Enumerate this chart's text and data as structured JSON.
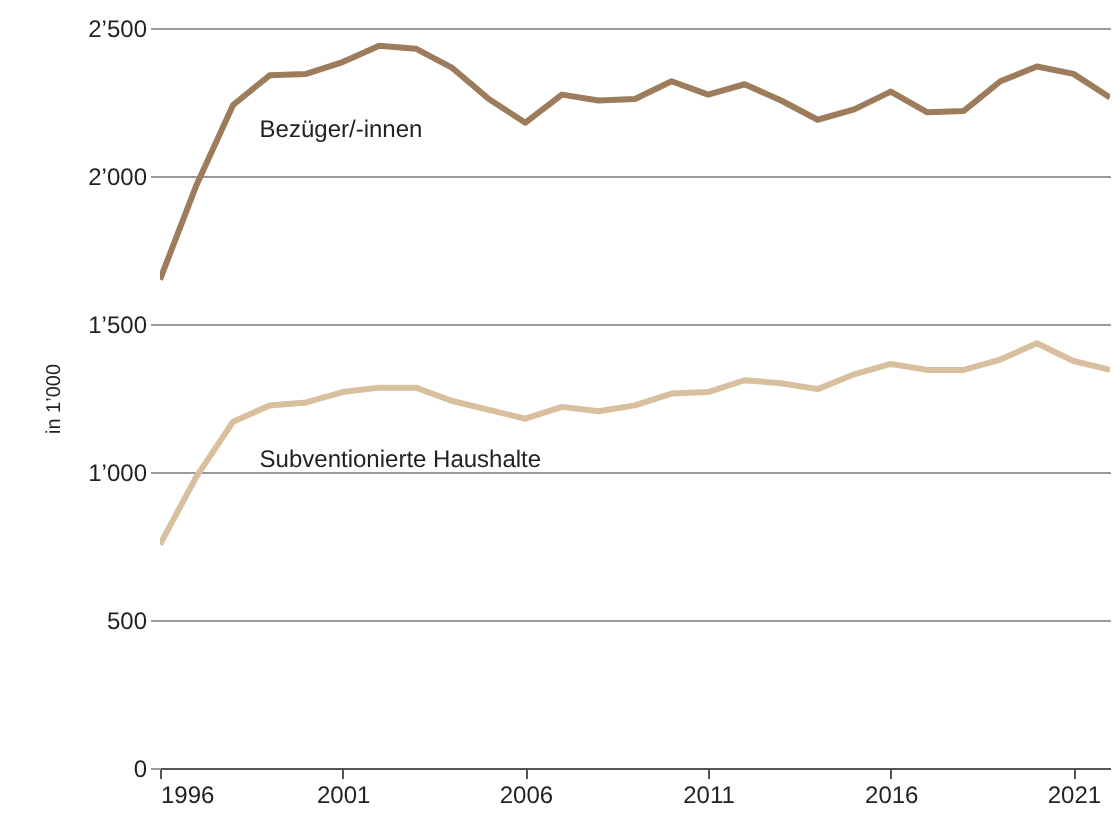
{
  "chart_data": {
    "type": "line",
    "ylabel": "in 1’000",
    "x": [
      1996,
      1997,
      1998,
      1999,
      2000,
      2001,
      2002,
      2003,
      2004,
      2005,
      2006,
      2007,
      2008,
      2009,
      2010,
      2011,
      2012,
      2013,
      2014,
      2015,
      2016,
      2017,
      2018,
      2019,
      2020,
      2021,
      2022
    ],
    "series": [
      {
        "name": "Bezüger/-innen",
        "color": "#9c7c5a",
        "values": [
          1650,
          1970,
          2240,
          2340,
          2345,
          2385,
          2440,
          2430,
          2365,
          2260,
          2180,
          2275,
          2255,
          2260,
          2320,
          2275,
          2310,
          2255,
          2190,
          2225,
          2285,
          2215,
          2220,
          2320,
          2370,
          2345,
          2265
        ]
      },
      {
        "name": "Subventionierte Haushalte",
        "color": "#d8bf9e",
        "values": [
          755,
          985,
          1170,
          1225,
          1235,
          1270,
          1285,
          1285,
          1240,
          1210,
          1180,
          1220,
          1205,
          1225,
          1265,
          1270,
          1310,
          1300,
          1280,
          1330,
          1365,
          1345,
          1345,
          1380,
          1435,
          1375,
          1345
        ]
      }
    ],
    "xlim": [
      1996,
      2022
    ],
    "xticks": [
      1996,
      2001,
      2006,
      2011,
      2016,
      2021
    ],
    "ylim": [
      0,
      2500
    ],
    "yticks": [
      {
        "value": 0,
        "label": "0"
      },
      {
        "value": 500,
        "label": "500"
      },
      {
        "value": 1000,
        "label": "1’000"
      },
      {
        "value": 1500,
        "label": "1’500"
      },
      {
        "value": 2000,
        "label": "2’000"
      },
      {
        "value": 2500,
        "label": "2’500"
      }
    ],
    "grid": "y",
    "legend": false,
    "marker": "none",
    "line_style": "solid"
  }
}
